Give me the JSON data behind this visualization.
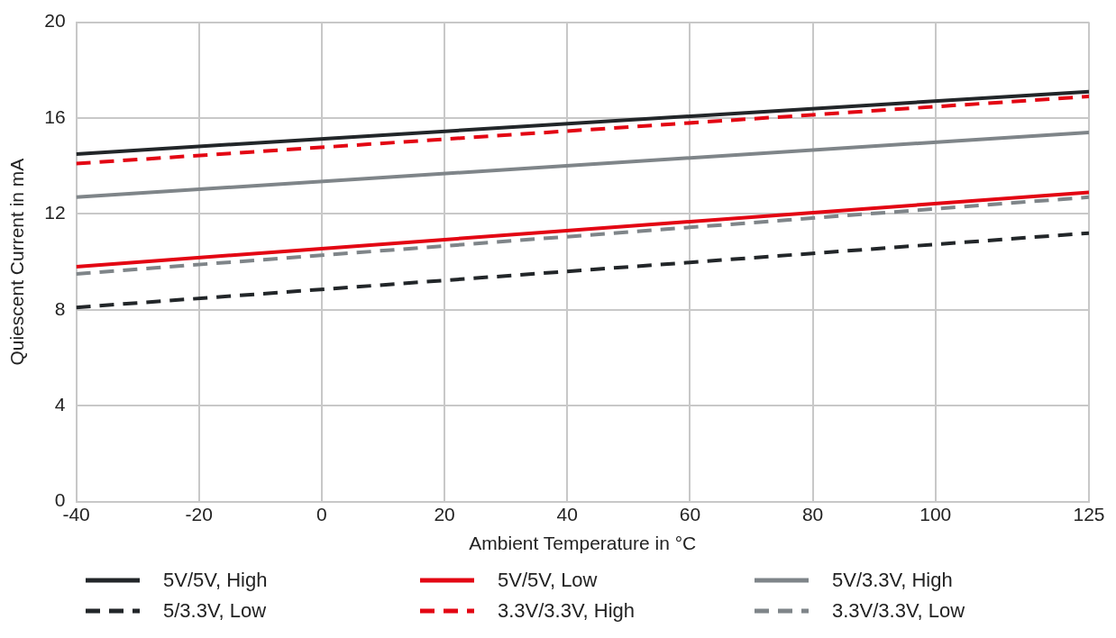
{
  "chart_data": {
    "type": "line",
    "xlabel": "Ambient Temperature in °C",
    "ylabel": "Quiescent Current in mA",
    "x": [
      -40,
      125
    ],
    "xlim": [
      -40,
      125
    ],
    "xticks": [
      -40,
      -20,
      0,
      20,
      40,
      60,
      80,
      100,
      125
    ],
    "ylim": [
      0,
      20
    ],
    "yticks": [
      0,
      4,
      8,
      12,
      16,
      20
    ],
    "grid": true,
    "legend": "bottom",
    "marker": "none",
    "series": [
      {
        "name": "5V/5V, High",
        "color": "#222629",
        "values": [
          14.5,
          17.1
        ],
        "line_style": "solid"
      },
      {
        "name": "5V/5V, Low",
        "color": "#e30613",
        "values": [
          9.8,
          12.9
        ],
        "line_style": "solid"
      },
      {
        "name": "5V/3.3V, High",
        "color": "#7f8589",
        "values": [
          12.7,
          15.4
        ],
        "line_style": "solid"
      },
      {
        "name": "5/3.3V, Low",
        "color": "#222629",
        "values": [
          8.1,
          11.2
        ],
        "line_style": "dashed"
      },
      {
        "name": "3.3V/3.3V, High",
        "color": "#e30613",
        "values": [
          14.1,
          16.9
        ],
        "line_style": "dashed"
      },
      {
        "name": "3.3V/3.3V, Low",
        "color": "#7f8589",
        "values": [
          9.5,
          12.7
        ],
        "line_style": "dashed"
      }
    ]
  }
}
